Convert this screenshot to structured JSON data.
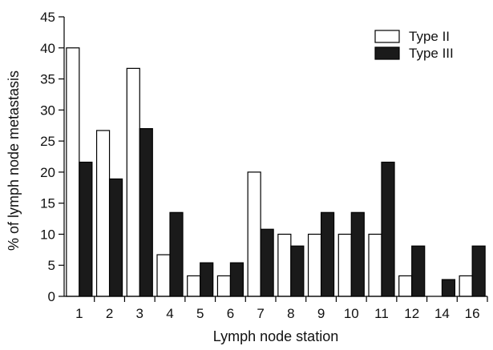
{
  "chart_data": {
    "type": "bar",
    "categories": [
      "1",
      "2",
      "3",
      "4",
      "5",
      "6",
      "7",
      "8",
      "9",
      "10",
      "11",
      "12",
      "14",
      "16"
    ],
    "series": [
      {
        "name": "Type II",
        "values": [
          40,
          26.7,
          36.7,
          6.7,
          3.3,
          3.3,
          20,
          10,
          10,
          10,
          10,
          3.3,
          0,
          3.3
        ],
        "color": "#ffffff",
        "stroke": "#000000"
      },
      {
        "name": "Type III",
        "values": [
          21.6,
          18.9,
          27,
          13.5,
          5.4,
          5.4,
          10.8,
          8.1,
          13.5,
          13.5,
          21.6,
          8.1,
          2.7,
          8.1
        ],
        "color": "#1a1a1a",
        "stroke": "#000000"
      }
    ],
    "xlabel": "Lymph node station",
    "ylabel": "% of lymph node metastasis",
    "ylim": [
      0,
      45
    ],
    "yticks": [
      0,
      5,
      10,
      15,
      20,
      25,
      30,
      35,
      40,
      45
    ],
    "grid": false,
    "legend_position": "top-right"
  }
}
